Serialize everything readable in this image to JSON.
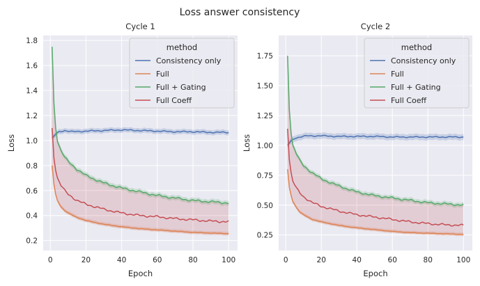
{
  "title": "Loss answer consistency",
  "chart_data": [
    {
      "type": "line",
      "title": "Cycle 1",
      "xlabel": "Epoch",
      "ylabel": "Loss",
      "xlim": [
        -4,
        105
      ],
      "ylim": [
        0.12,
        1.84
      ],
      "xticks": [
        0,
        20,
        40,
        60,
        80,
        100
      ],
      "yticks": [
        0.2,
        0.4,
        0.6,
        0.8,
        1.0,
        1.2,
        1.4,
        1.6,
        1.8
      ],
      "ytick_labels": [
        "0.2",
        "0.4",
        "0.6",
        "0.8",
        "1.0",
        "1.2",
        "1.4",
        "1.6",
        "1.8"
      ],
      "grid": true,
      "legend": {
        "title": "method",
        "position": "upper right"
      },
      "series": [
        {
          "name": "Consistency only",
          "color": "#4c72b0",
          "x": [
            1,
            3,
            5,
            8,
            12,
            20,
            30,
            40,
            50,
            60,
            70,
            80,
            90,
            100
          ],
          "y": [
            1.02,
            1.05,
            1.07,
            1.08,
            1.07,
            1.075,
            1.08,
            1.085,
            1.08,
            1.075,
            1.07,
            1.07,
            1.065,
            1.065
          ],
          "band": 0.02
        },
        {
          "name": "Full",
          "color": "#dd8452",
          "x": [
            1,
            2,
            3,
            4,
            6,
            8,
            10,
            15,
            20,
            30,
            40,
            50,
            60,
            70,
            80,
            90,
            100
          ],
          "y": [
            0.8,
            0.65,
            0.57,
            0.52,
            0.47,
            0.44,
            0.42,
            0.385,
            0.36,
            0.33,
            0.31,
            0.295,
            0.285,
            0.275,
            0.265,
            0.26,
            0.255
          ],
          "band": 0.015
        },
        {
          "name": "Full + Gating",
          "color": "#55a868",
          "x": [
            1,
            2,
            3,
            4,
            6,
            8,
            10,
            15,
            20,
            30,
            40,
            50,
            60,
            70,
            80,
            90,
            100
          ],
          "y": [
            1.75,
            1.3,
            1.1,
            1.0,
            0.92,
            0.87,
            0.83,
            0.77,
            0.72,
            0.66,
            0.62,
            0.59,
            0.56,
            0.54,
            0.52,
            0.51,
            0.5
          ],
          "band": 0.02
        },
        {
          "name": "Full Coeff",
          "color": "#c44e52",
          "x": [
            1,
            2,
            3,
            4,
            6,
            8,
            10,
            15,
            20,
            30,
            40,
            50,
            60,
            70,
            80,
            90,
            100
          ],
          "y": [
            1.1,
            0.86,
            0.76,
            0.7,
            0.64,
            0.6,
            0.57,
            0.52,
            0.49,
            0.45,
            0.42,
            0.4,
            0.39,
            0.375,
            0.365,
            0.355,
            0.35
          ],
          "band_lower_series": "Full",
          "band_upper_series": "Full + Gating"
        }
      ]
    },
    {
      "type": "line",
      "title": "Cycle 2",
      "xlabel": "Epoch",
      "ylabel": "Loss",
      "xlim": [
        -4,
        105
      ],
      "ylim": [
        0.12,
        1.92
      ],
      "xticks": [
        0,
        20,
        40,
        60,
        80,
        100
      ],
      "yticks": [
        0.25,
        0.5,
        0.75,
        1.0,
        1.25,
        1.5,
        1.75
      ],
      "ytick_labels": [
        "0.25",
        "0.50",
        "0.75",
        "1.00",
        "1.25",
        "1.50",
        "1.75"
      ],
      "grid": true,
      "legend": {
        "title": "method",
        "position": "upper right"
      },
      "series": [
        {
          "name": "Consistency only",
          "color": "#4c72b0",
          "x": [
            1,
            3,
            5,
            8,
            12,
            20,
            30,
            40,
            50,
            60,
            70,
            80,
            90,
            100
          ],
          "y": [
            1.0,
            1.04,
            1.06,
            1.07,
            1.08,
            1.08,
            1.075,
            1.075,
            1.075,
            1.07,
            1.07,
            1.07,
            1.07,
            1.07
          ],
          "band": 0.025
        },
        {
          "name": "Full",
          "color": "#dd8452",
          "x": [
            1,
            2,
            3,
            4,
            6,
            8,
            10,
            15,
            20,
            30,
            40,
            50,
            60,
            70,
            80,
            90,
            100
          ],
          "y": [
            0.8,
            0.65,
            0.58,
            0.53,
            0.48,
            0.44,
            0.42,
            0.38,
            0.36,
            0.33,
            0.31,
            0.295,
            0.28,
            0.27,
            0.265,
            0.26,
            0.255
          ],
          "band": 0.015
        },
        {
          "name": "Full + Gating",
          "color": "#55a868",
          "x": [
            1,
            2,
            3,
            4,
            6,
            8,
            10,
            15,
            20,
            30,
            40,
            50,
            60,
            70,
            80,
            90,
            100
          ],
          "y": [
            1.75,
            1.3,
            1.1,
            1.0,
            0.93,
            0.87,
            0.83,
            0.77,
            0.72,
            0.66,
            0.61,
            0.58,
            0.56,
            0.54,
            0.52,
            0.51,
            0.5
          ],
          "band": 0.02
        },
        {
          "name": "Full Coeff",
          "color": "#c44e52",
          "x": [
            1,
            2,
            3,
            4,
            6,
            8,
            10,
            15,
            20,
            30,
            40,
            50,
            60,
            70,
            80,
            90,
            100
          ],
          "y": [
            1.14,
            0.88,
            0.77,
            0.7,
            0.64,
            0.6,
            0.57,
            0.52,
            0.49,
            0.45,
            0.42,
            0.4,
            0.38,
            0.36,
            0.345,
            0.335,
            0.33
          ],
          "band_lower_series": "Full",
          "band_upper_series": "Full + Gating"
        }
      ]
    }
  ]
}
